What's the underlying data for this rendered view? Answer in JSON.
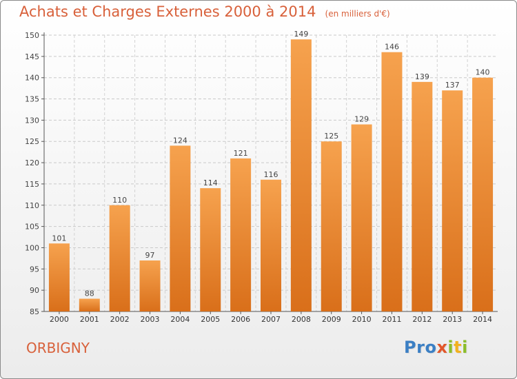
{
  "page": {
    "commune": "ORBIGNY",
    "logo": {
      "letters": [
        "P",
        "r",
        "o",
        "x",
        "i",
        "t",
        "i"
      ],
      "colors": [
        "#3b7fc4",
        "#3b7fc4",
        "#3b7fc4",
        "#e2572a",
        "#8bbd2a",
        "#f2b120",
        "#8bbd2a"
      ]
    }
  },
  "chart_data": {
    "type": "bar",
    "title": "Achats et Charges Externes 2000 à 2014",
    "unit_note": "(en milliers d'€)",
    "categories": [
      "2000",
      "2001",
      "2002",
      "2003",
      "2004",
      "2005",
      "2006",
      "2007",
      "2008",
      "2009",
      "2010",
      "2011",
      "2012",
      "2013",
      "2014"
    ],
    "values": [
      101,
      88,
      110,
      97,
      124,
      114,
      121,
      116,
      149,
      125,
      129,
      146,
      139,
      137,
      140
    ],
    "ylim": [
      85,
      150
    ],
    "yticks": [
      85,
      90,
      95,
      100,
      105,
      110,
      115,
      120,
      125,
      130,
      135,
      140,
      145,
      150
    ],
    "grid": true,
    "bar_color_top": "#f6a24e",
    "bar_color_bottom": "#d96f1a",
    "text_color": "#d8603a"
  }
}
